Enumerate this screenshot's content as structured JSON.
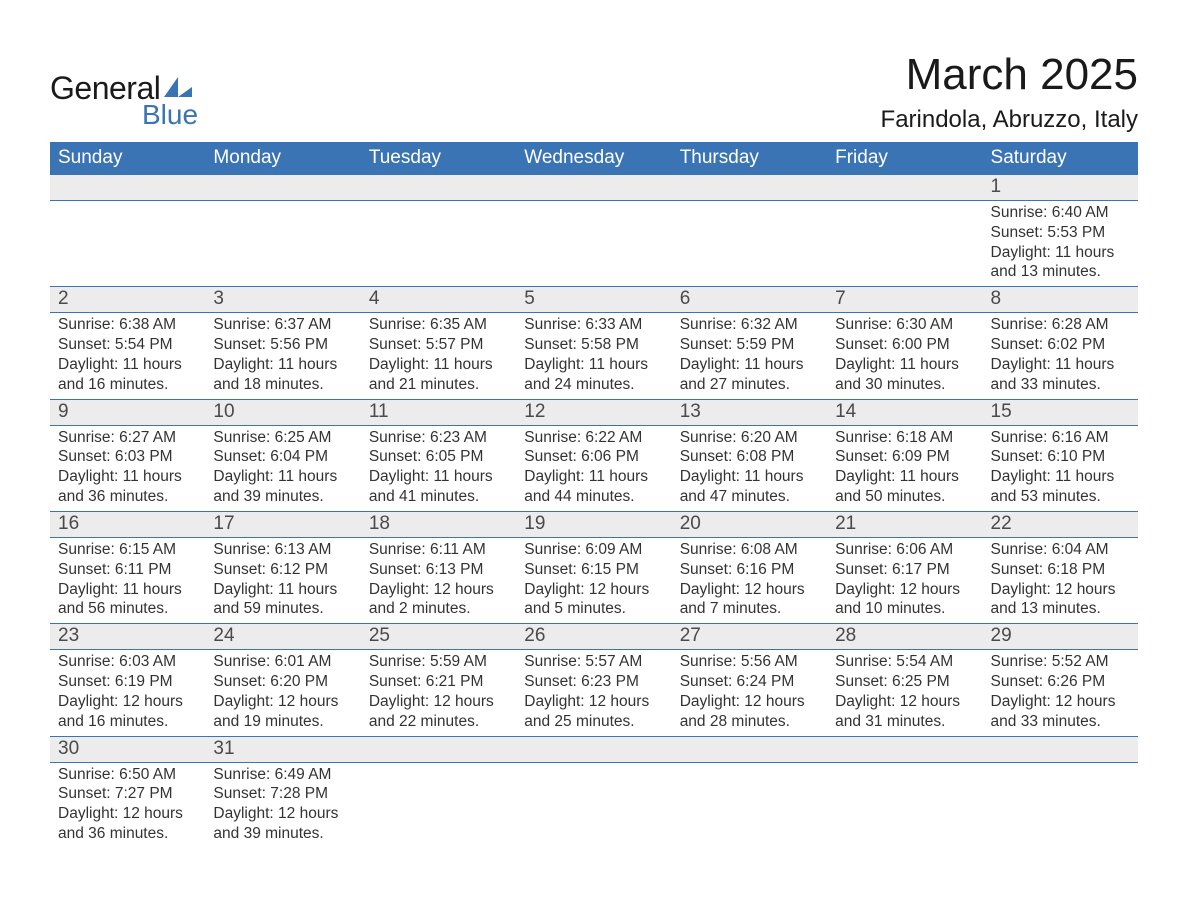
{
  "brand": {
    "word1": "General",
    "word2": "Blue",
    "logo_color": "#3a74b4",
    "text_color": "#1a1a1a"
  },
  "title": "March 2025",
  "location": "Farindola, Abruzzo, Italy",
  "colors": {
    "header_bg": "#3a74b4",
    "header_text": "#ffffff",
    "daynum_bg": "#ececec",
    "body_text": "#333333",
    "row_border": "#3a74b4",
    "page_bg": "#ffffff"
  },
  "typography": {
    "title_fontsize": 44,
    "location_fontsize": 24,
    "header_fontsize": 19,
    "daynum_fontsize": 19,
    "detail_fontsize": 15.5,
    "font_family": "Arial"
  },
  "day_headers": [
    "Sunday",
    "Monday",
    "Tuesday",
    "Wednesday",
    "Thursday",
    "Friday",
    "Saturday"
  ],
  "weeks": [
    [
      null,
      null,
      null,
      null,
      null,
      null,
      {
        "n": "1",
        "sunrise": "6:40 AM",
        "sunset": "5:53 PM",
        "dl": "11 hours and 13 minutes."
      }
    ],
    [
      {
        "n": "2",
        "sunrise": "6:38 AM",
        "sunset": "5:54 PM",
        "dl": "11 hours and 16 minutes."
      },
      {
        "n": "3",
        "sunrise": "6:37 AM",
        "sunset": "5:56 PM",
        "dl": "11 hours and 18 minutes."
      },
      {
        "n": "4",
        "sunrise": "6:35 AM",
        "sunset": "5:57 PM",
        "dl": "11 hours and 21 minutes."
      },
      {
        "n": "5",
        "sunrise": "6:33 AM",
        "sunset": "5:58 PM",
        "dl": "11 hours and 24 minutes."
      },
      {
        "n": "6",
        "sunrise": "6:32 AM",
        "sunset": "5:59 PM",
        "dl": "11 hours and 27 minutes."
      },
      {
        "n": "7",
        "sunrise": "6:30 AM",
        "sunset": "6:00 PM",
        "dl": "11 hours and 30 minutes."
      },
      {
        "n": "8",
        "sunrise": "6:28 AM",
        "sunset": "6:02 PM",
        "dl": "11 hours and 33 minutes."
      }
    ],
    [
      {
        "n": "9",
        "sunrise": "6:27 AM",
        "sunset": "6:03 PM",
        "dl": "11 hours and 36 minutes."
      },
      {
        "n": "10",
        "sunrise": "6:25 AM",
        "sunset": "6:04 PM",
        "dl": "11 hours and 39 minutes."
      },
      {
        "n": "11",
        "sunrise": "6:23 AM",
        "sunset": "6:05 PM",
        "dl": "11 hours and 41 minutes."
      },
      {
        "n": "12",
        "sunrise": "6:22 AM",
        "sunset": "6:06 PM",
        "dl": "11 hours and 44 minutes."
      },
      {
        "n": "13",
        "sunrise": "6:20 AM",
        "sunset": "6:08 PM",
        "dl": "11 hours and 47 minutes."
      },
      {
        "n": "14",
        "sunrise": "6:18 AM",
        "sunset": "6:09 PM",
        "dl": "11 hours and 50 minutes."
      },
      {
        "n": "15",
        "sunrise": "6:16 AM",
        "sunset": "6:10 PM",
        "dl": "11 hours and 53 minutes."
      }
    ],
    [
      {
        "n": "16",
        "sunrise": "6:15 AM",
        "sunset": "6:11 PM",
        "dl": "11 hours and 56 minutes."
      },
      {
        "n": "17",
        "sunrise": "6:13 AM",
        "sunset": "6:12 PM",
        "dl": "11 hours and 59 minutes."
      },
      {
        "n": "18",
        "sunrise": "6:11 AM",
        "sunset": "6:13 PM",
        "dl": "12 hours and 2 minutes."
      },
      {
        "n": "19",
        "sunrise": "6:09 AM",
        "sunset": "6:15 PM",
        "dl": "12 hours and 5 minutes."
      },
      {
        "n": "20",
        "sunrise": "6:08 AM",
        "sunset": "6:16 PM",
        "dl": "12 hours and 7 minutes."
      },
      {
        "n": "21",
        "sunrise": "6:06 AM",
        "sunset": "6:17 PM",
        "dl": "12 hours and 10 minutes."
      },
      {
        "n": "22",
        "sunrise": "6:04 AM",
        "sunset": "6:18 PM",
        "dl": "12 hours and 13 minutes."
      }
    ],
    [
      {
        "n": "23",
        "sunrise": "6:03 AM",
        "sunset": "6:19 PM",
        "dl": "12 hours and 16 minutes."
      },
      {
        "n": "24",
        "sunrise": "6:01 AM",
        "sunset": "6:20 PM",
        "dl": "12 hours and 19 minutes."
      },
      {
        "n": "25",
        "sunrise": "5:59 AM",
        "sunset": "6:21 PM",
        "dl": "12 hours and 22 minutes."
      },
      {
        "n": "26",
        "sunrise": "5:57 AM",
        "sunset": "6:23 PM",
        "dl": "12 hours and 25 minutes."
      },
      {
        "n": "27",
        "sunrise": "5:56 AM",
        "sunset": "6:24 PM",
        "dl": "12 hours and 28 minutes."
      },
      {
        "n": "28",
        "sunrise": "5:54 AM",
        "sunset": "6:25 PM",
        "dl": "12 hours and 31 minutes."
      },
      {
        "n": "29",
        "sunrise": "5:52 AM",
        "sunset": "6:26 PM",
        "dl": "12 hours and 33 minutes."
      }
    ],
    [
      {
        "n": "30",
        "sunrise": "6:50 AM",
        "sunset": "7:27 PM",
        "dl": "12 hours and 36 minutes."
      },
      {
        "n": "31",
        "sunrise": "6:49 AM",
        "sunset": "7:28 PM",
        "dl": "12 hours and 39 minutes."
      },
      null,
      null,
      null,
      null,
      null
    ]
  ],
  "labels": {
    "sunrise": "Sunrise: ",
    "sunset": "Sunset: ",
    "daylight": "Daylight: "
  }
}
